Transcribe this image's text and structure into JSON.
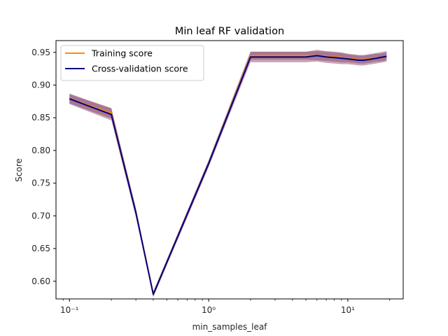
{
  "chart_data": {
    "type": "line",
    "title": "Min leaf RF validation",
    "xlabel": "min_samples_leaf",
    "ylabel": "Score",
    "x_scale": "log",
    "xlim": [
      0.08,
      25
    ],
    "ylim": [
      0.573,
      0.968
    ],
    "x_ticks": [
      {
        "value": 0.1,
        "label": "10⁻¹"
      },
      {
        "value": 1,
        "label": "10⁰"
      },
      {
        "value": 10,
        "label": "10¹"
      }
    ],
    "y_ticks": [
      {
        "value": 0.6,
        "label": "0.60"
      },
      {
        "value": 0.65,
        "label": "0.65"
      },
      {
        "value": 0.7,
        "label": "0.70"
      },
      {
        "value": 0.75,
        "label": "0.75"
      },
      {
        "value": 0.8,
        "label": "0.80"
      },
      {
        "value": 0.85,
        "label": "0.85"
      },
      {
        "value": 0.9,
        "label": "0.90"
      },
      {
        "value": 0.95,
        "label": "0.95"
      }
    ],
    "legend_position": "upper-left",
    "x": [
      0.1,
      0.2,
      0.3,
      0.4,
      1,
      2,
      3,
      4,
      5,
      6,
      7,
      8,
      9,
      10,
      11,
      12,
      13,
      14,
      15,
      16,
      17,
      18,
      19
    ],
    "series": [
      {
        "name": "Training score",
        "color": "#ff8c00",
        "values": [
          0.879,
          0.857,
          0.705,
          0.58,
          0.78,
          0.945,
          0.945,
          0.945,
          0.945,
          0.945,
          0.944,
          0.943,
          0.942,
          0.941,
          0.94,
          0.939,
          0.939,
          0.94,
          0.941,
          0.942,
          0.942,
          0.943,
          0.944
        ],
        "band": [
          0.007,
          0.008,
          0.006,
          0.004,
          0.005,
          0.006,
          0.006,
          0.006,
          0.006,
          0.007,
          0.007,
          0.007,
          0.007,
          0.006,
          0.006,
          0.006,
          0.006,
          0.006,
          0.006,
          0.006,
          0.006,
          0.006,
          0.006
        ]
      },
      {
        "name": "Cross-validation score",
        "color": "#000080",
        "values": [
          0.879,
          0.855,
          0.705,
          0.58,
          0.78,
          0.943,
          0.943,
          0.943,
          0.943,
          0.945,
          0.943,
          0.942,
          0.941,
          0.94,
          0.939,
          0.938,
          0.938,
          0.939,
          0.94,
          0.941,
          0.942,
          0.943,
          0.944
        ],
        "band": [
          0.008,
          0.009,
          0.007,
          0.004,
          0.005,
          0.008,
          0.008,
          0.008,
          0.008,
          0.009,
          0.009,
          0.009,
          0.009,
          0.008,
          0.008,
          0.008,
          0.008,
          0.008,
          0.008,
          0.008,
          0.008,
          0.008,
          0.008
        ]
      }
    ],
    "band_color": "#8b4a6e"
  }
}
